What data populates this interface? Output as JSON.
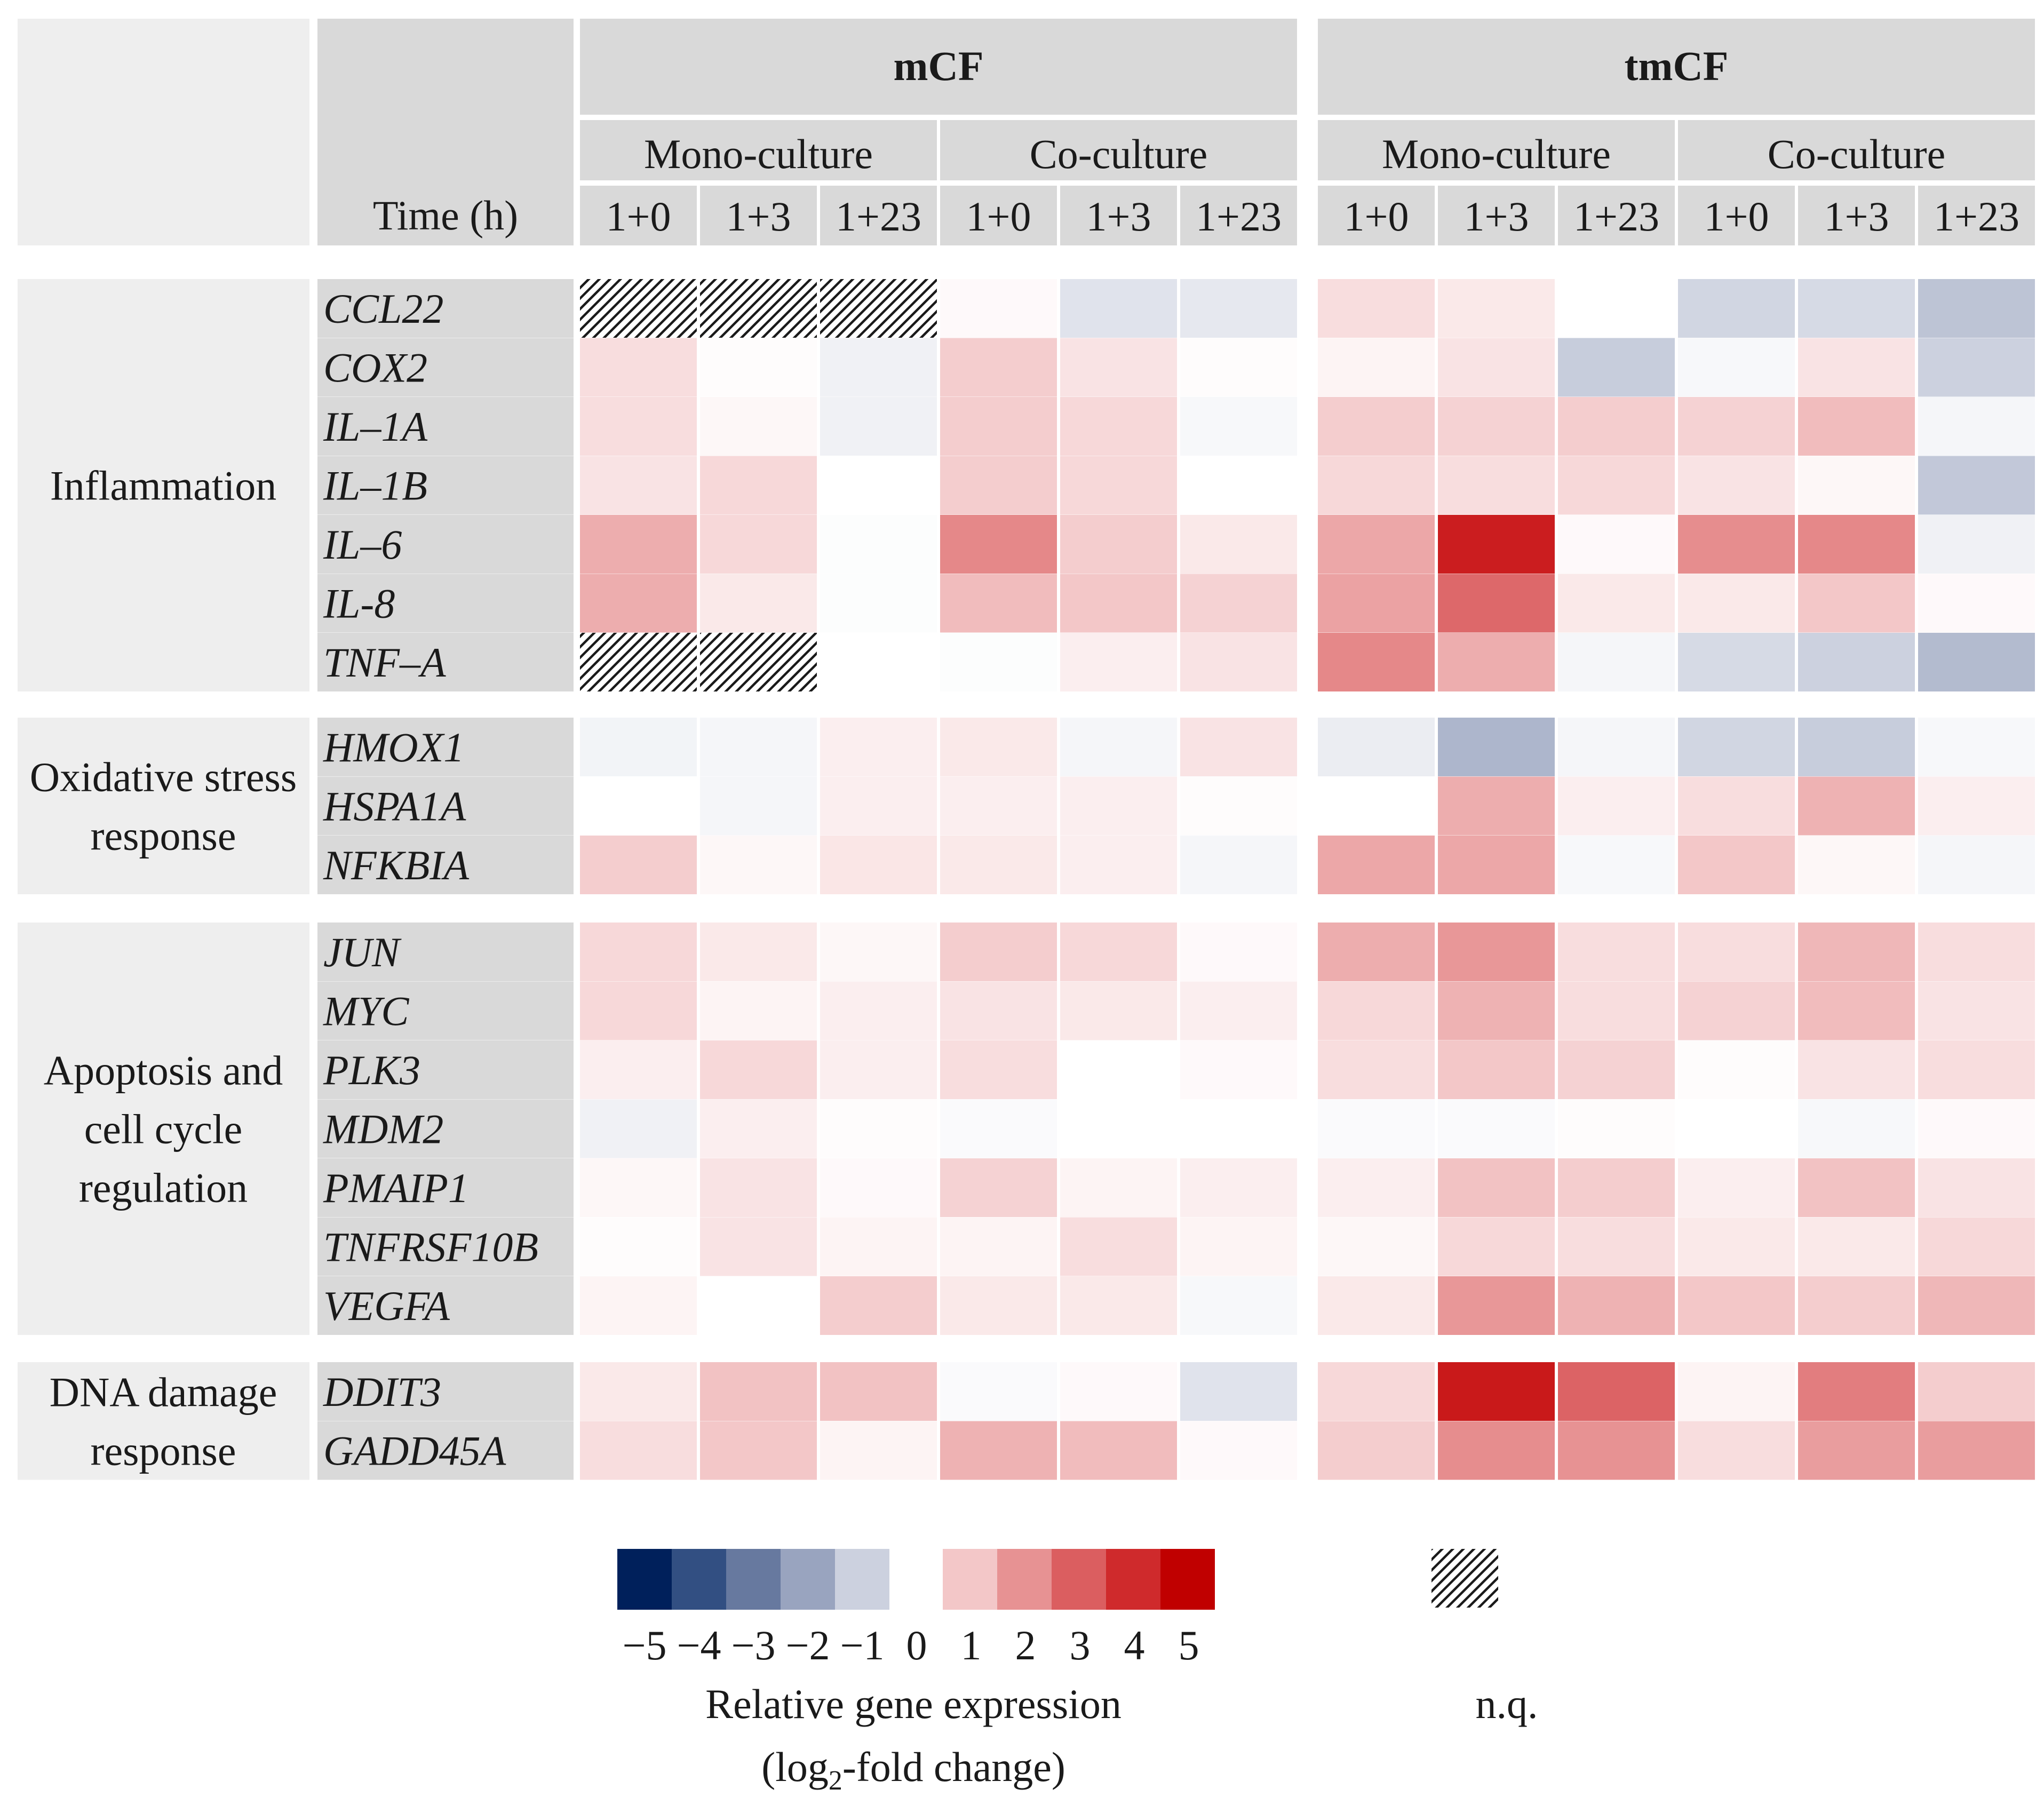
{
  "chart_data": {
    "type": "heatmap",
    "time_header": "Time (h)",
    "cell_lines": [
      "mCF",
      "tmCF"
    ],
    "cultures": [
      "Mono-culture",
      "Co-culture"
    ],
    "time_points": [
      "1+0",
      "1+3",
      "1+23"
    ],
    "columns": [
      "mCF Mono-culture 1+0",
      "mCF Mono-culture 1+3",
      "mCF Mono-culture 1+23",
      "mCF Co-culture 1+0",
      "mCF Co-culture 1+3",
      "mCF Co-culture 1+23",
      "tmCF Mono-culture 1+0",
      "tmCF Mono-culture 1+3",
      "tmCF Mono-culture 1+23",
      "tmCF Co-culture 1+0",
      "tmCF Co-culture 1+3",
      "tmCF Co-culture 1+23"
    ],
    "groups": [
      {
        "name": "Inflammation",
        "name_lines": [
          "Inflammation"
        ],
        "genes": [
          {
            "gene": "CCL22",
            "values": [
              null,
              null,
              null,
              0.1,
              -0.6,
              -0.5,
              0.6,
              0.4,
              0.0,
              -0.9,
              -0.8,
              -1.3
            ]
          },
          {
            "gene": "COX2",
            "values": [
              0.6,
              0.05,
              -0.3,
              0.9,
              0.5,
              0.05,
              0.2,
              0.5,
              -1.1,
              -0.15,
              0.5,
              -1.0
            ]
          },
          {
            "gene": "IL–1A",
            "values": [
              0.6,
              0.15,
              -0.3,
              0.9,
              0.7,
              -0.15,
              0.9,
              0.8,
              0.9,
              0.8,
              1.2,
              -0.2
            ]
          },
          {
            "gene": "IL–1B",
            "values": [
              0.5,
              0.7,
              0.0,
              0.9,
              0.7,
              0.0,
              0.7,
              0.6,
              0.7,
              0.5,
              0.15,
              -1.2
            ]
          },
          {
            "gene": "IL–6",
            "values": [
              1.5,
              0.7,
              -0.05,
              2.2,
              0.9,
              0.4,
              1.6,
              4.3,
              0.1,
              2.1,
              2.2,
              -0.3
            ]
          },
          {
            "gene": "IL-8",
            "values": [
              1.5,
              0.4,
              -0.05,
              1.2,
              1.0,
              0.8,
              1.7,
              2.8,
              0.4,
              0.4,
              1.0,
              0.1
            ]
          },
          {
            "gene": "TNF–A",
            "values": [
              null,
              null,
              0.0,
              -0.05,
              0.3,
              0.5,
              2.2,
              1.5,
              -0.2,
              -0.8,
              -1.0,
              -1.5
            ]
          }
        ]
      },
      {
        "name": "Oxidative stress response",
        "name_lines": [
          "Oxidative stress",
          "response"
        ],
        "genes": [
          {
            "gene": "HMOX1",
            "values": [
              -0.25,
              -0.2,
              0.3,
              0.4,
              -0.2,
              0.5,
              -0.4,
              -1.6,
              -0.2,
              -0.9,
              -1.1,
              -0.15
            ]
          },
          {
            "gene": "HSPA1A",
            "values": [
              0.0,
              -0.2,
              0.3,
              0.3,
              0.3,
              0.05,
              0.0,
              1.5,
              0.3,
              0.6,
              1.4,
              0.3
            ]
          },
          {
            "gene": "NFKBIA",
            "values": [
              0.9,
              0.15,
              0.45,
              0.4,
              0.3,
              -0.2,
              1.6,
              1.6,
              -0.15,
              1.0,
              0.15,
              -0.2
            ]
          }
        ]
      },
      {
        "name": "Apoptosis and cell cycle regulation",
        "name_lines": [
          "Apoptosis and",
          "cell cycle",
          "regulation"
        ],
        "genes": [
          {
            "gene": "JUN",
            "values": [
              0.7,
              0.4,
              0.15,
              0.9,
              0.7,
              0.1,
              1.5,
              1.9,
              0.6,
              0.6,
              1.3,
              0.6
            ]
          },
          {
            "gene": "MYC",
            "values": [
              0.7,
              0.2,
              0.3,
              0.5,
              0.4,
              0.3,
              0.7,
              1.4,
              0.6,
              0.8,
              1.2,
              0.5
            ]
          },
          {
            "gene": "PLK3",
            "values": [
              0.3,
              0.7,
              0.3,
              0.6,
              0.0,
              0.1,
              0.6,
              1.0,
              0.8,
              0.05,
              0.5,
              0.6
            ]
          },
          {
            "gene": "MDM2",
            "values": [
              -0.3,
              0.3,
              0.05,
              -0.1,
              0.0,
              0.0,
              -0.1,
              -0.1,
              0.05,
              0.0,
              -0.15,
              0.1
            ]
          },
          {
            "gene": "PMAIP1",
            "values": [
              0.15,
              0.5,
              0.1,
              0.8,
              0.2,
              0.3,
              0.3,
              1.1,
              0.9,
              0.3,
              1.1,
              0.5
            ]
          },
          {
            "gene": "TNFRSF10B",
            "values": [
              0.05,
              0.5,
              0.2,
              0.2,
              0.6,
              0.2,
              0.15,
              0.7,
              0.6,
              0.4,
              0.4,
              0.7
            ]
          },
          {
            "gene": "VEGFA",
            "values": [
              0.2,
              0.0,
              0.9,
              0.4,
              0.4,
              -0.15,
              0.4,
              1.9,
              1.4,
              1.0,
              0.9,
              1.3
            ]
          }
        ]
      },
      {
        "name": "DNA damage response",
        "name_lines": [
          "DNA damage",
          "response"
        ],
        "genes": [
          {
            "gene": "DDIT3",
            "values": [
              0.4,
              1.1,
              1.1,
              -0.1,
              0.1,
              -0.6,
              0.7,
              4.4,
              2.9,
              0.2,
              2.4,
              0.9
            ]
          },
          {
            "gene": "GADD45A",
            "values": [
              0.6,
              1.0,
              0.2,
              1.4,
              1.2,
              0.1,
              0.9,
              2.1,
              2.0,
              0.6,
              1.8,
              1.8
            ]
          }
        ]
      }
    ],
    "missing_label": "n.q.",
    "colorbar": {
      "values": [
        -5,
        -4,
        -3,
        -2,
        -1,
        0,
        1,
        2,
        3,
        4,
        5
      ],
      "tick_labels": [
        "−5",
        "−4",
        "−3",
        "−2",
        "−1",
        "0",
        "1",
        "2",
        "3",
        "4",
        "5"
      ],
      "colors": {
        "-5": "#00205b",
        "-4": "#324f82",
        "-3": "#67799f",
        "-2": "#99a4bf",
        "-1": "#ccd1df",
        "0": "#ffffff",
        "1": "#f3c7c8",
        "2": "#e79293",
        "3": "#db5e60",
        "4": "#cf2a2c",
        "5": "#c00000"
      },
      "label_line1": "Relative gene expression",
      "label_line2_prefix": "(log",
      "label_line2_sub": "2",
      "label_line2_suffix": "-fold change)"
    },
    "colors": {
      "header_fill": "#d9d9d9",
      "group_fill": "#eeeeee",
      "gene_fill": "#d9d9d9",
      "hatch_fill": "#ffffff",
      "hatch_stroke": "#1a1a1a"
    }
  }
}
